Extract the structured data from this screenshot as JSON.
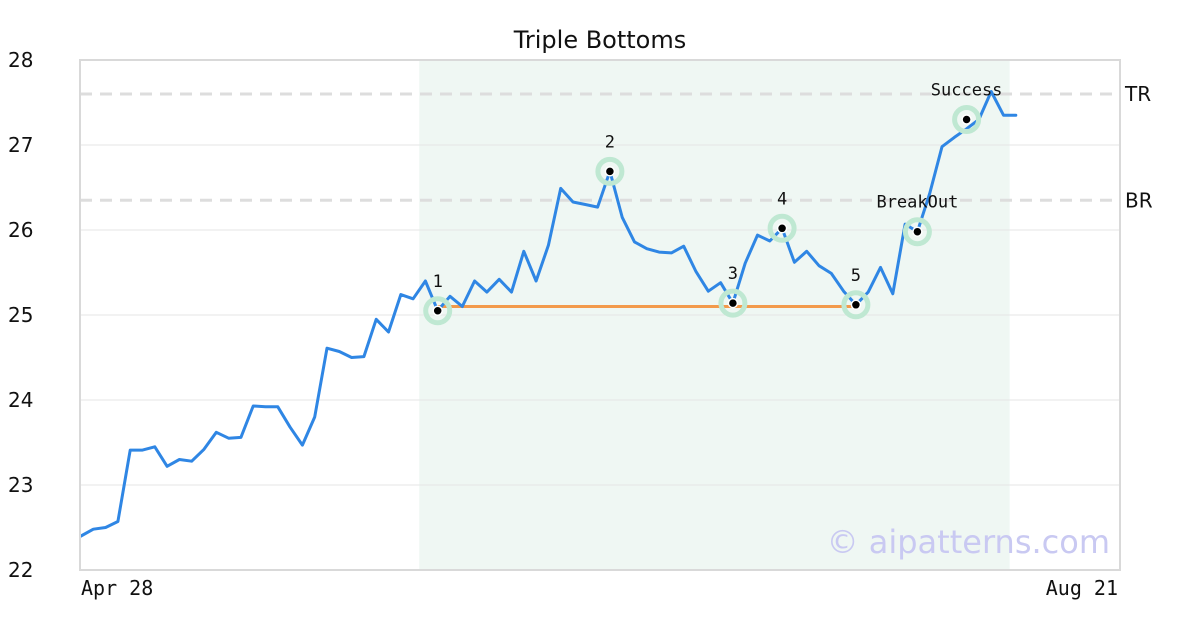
{
  "chart_data": {
    "type": "line",
    "title": "Triple Bottoms",
    "xlabel": "",
    "ylabel": "",
    "x_tick_labels": [
      "Apr 28",
      "Aug 21"
    ],
    "y_ticks": [
      22,
      23,
      24,
      25,
      26,
      27,
      28
    ],
    "ylim": [
      22,
      28
    ],
    "xlim": [
      0,
      83
    ],
    "grid": true,
    "series": [
      {
        "color": "#2f86e4",
        "values": [
          22.4,
          22.48,
          22.5,
          22.57,
          23.41,
          23.41,
          23.45,
          23.22,
          23.3,
          23.28,
          23.42,
          23.62,
          23.55,
          23.56,
          23.93,
          23.92,
          23.92,
          23.68,
          23.47,
          23.8,
          24.61,
          24.57,
          24.5,
          24.51,
          24.95,
          24.8,
          25.24,
          25.19,
          25.4,
          25.05,
          25.22,
          25.1,
          25.4,
          25.27,
          25.42,
          25.27,
          25.75,
          25.4,
          25.82,
          26.49,
          26.33,
          26.3,
          26.27,
          26.69,
          26.15,
          25.86,
          25.78,
          25.74,
          25.73,
          25.81,
          25.51,
          25.28,
          25.38,
          25.14,
          25.61,
          25.94,
          25.87,
          26.02,
          25.62,
          25.75,
          25.58,
          25.49,
          25.28,
          25.12,
          25.27,
          25.56,
          25.25,
          26.07,
          25.98,
          26.43,
          26.98,
          27.09,
          27.19,
          27.3,
          27.63,
          27.35,
          27.35
        ]
      }
    ],
    "highlight_region": {
      "x_start": 27.5,
      "x_end": 75.5,
      "color": "#eff7f3"
    },
    "support_line": {
      "x_start": 29,
      "x_end": 63,
      "y": 25.1,
      "color": "#f39a4b"
    },
    "levels": [
      {
        "label": "TR",
        "y": 27.6
      },
      {
        "label": "BR",
        "y": 26.35
      }
    ],
    "pivot_points": [
      {
        "label": "1",
        "x": 29,
        "y": 25.05
      },
      {
        "label": "2",
        "x": 43,
        "y": 26.69
      },
      {
        "label": "3",
        "x": 53,
        "y": 25.14
      },
      {
        "label": "4",
        "x": 57,
        "y": 26.02
      },
      {
        "label": "5",
        "x": 63,
        "y": 25.12
      },
      {
        "label": "BreakOut",
        "x": 68,
        "y": 25.98
      },
      {
        "label": "Success",
        "x": 72,
        "y": 27.3
      }
    ],
    "watermark": "© aipatterns.com"
  }
}
